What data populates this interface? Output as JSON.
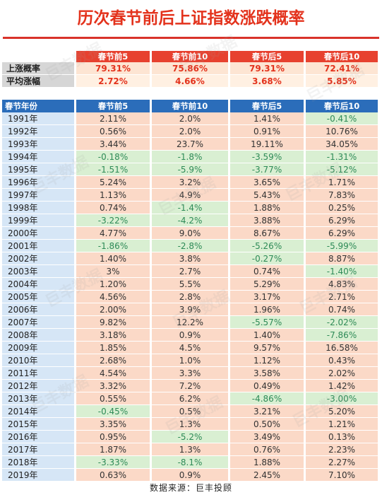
{
  "title": "历次春节前后上证指数涨跌概率",
  "source": "数据来源：巨丰投顾",
  "watermark": "巨丰数据",
  "colors": {
    "title_red": "#e3321c",
    "header_blue": "#2b6dba",
    "header_red": "#e7412f",
    "positive_bg": "#fbd9c7",
    "negative_bg": "#d9efd2",
    "negative_text": "#2e8b57"
  },
  "summary": {
    "headers": [
      "春节前5",
      "春节前10",
      "春节后5",
      "春节后10"
    ],
    "rows": [
      {
        "label": "上涨概率",
        "values": [
          "79.31%",
          "75.86%",
          "79.31%",
          "72.41%"
        ]
      },
      {
        "label": "平均涨幅",
        "values": [
          "2.72%",
          "4.66%",
          "3.68%",
          "5.85%"
        ]
      }
    ]
  },
  "main": {
    "headers": [
      "春节年份",
      "春节前5",
      "春节前10",
      "春节后5",
      "春节后10"
    ],
    "rows": [
      {
        "year": "1991年",
        "values": [
          "2.11%",
          "2.0%",
          "1.41%",
          "-0.41%"
        ]
      },
      {
        "year": "1992年",
        "values": [
          "0.56%",
          "2.0%",
          "0.91%",
          "10.76%"
        ]
      },
      {
        "year": "1993年",
        "values": [
          "3.44%",
          "23.7%",
          "19.11%",
          "34.05%"
        ]
      },
      {
        "year": "1994年",
        "values": [
          "-0.18%",
          "-1.8%",
          "-3.59%",
          "-1.31%"
        ]
      },
      {
        "year": "1995年",
        "values": [
          "-1.51%",
          "-5.9%",
          "-3.77%",
          "-5.12%"
        ]
      },
      {
        "year": "1996年",
        "values": [
          "5.24%",
          "3.2%",
          "3.65%",
          "1.71%"
        ]
      },
      {
        "year": "1997年",
        "values": [
          "1.13%",
          "4.9%",
          "5.43%",
          "7.83%"
        ]
      },
      {
        "year": "1998年",
        "values": [
          "0.74%",
          "-1.4%",
          "1.88%",
          "0.25%"
        ]
      },
      {
        "year": "1999年",
        "values": [
          "-3.22%",
          "-4.2%",
          "3.88%",
          "6.29%"
        ]
      },
      {
        "year": "2000年",
        "values": [
          "4.77%",
          "9.0%",
          "8.67%",
          "6.29%"
        ]
      },
      {
        "year": "2001年",
        "values": [
          "-1.86%",
          "-2.8%",
          "-5.26%",
          "-5.99%"
        ]
      },
      {
        "year": "2002年",
        "values": [
          "1.40%",
          "3.8%",
          "-0.27%",
          "8.87%"
        ]
      },
      {
        "year": "2003年",
        "values": [
          "3%",
          "2.7%",
          "0.74%",
          "-1.40%"
        ]
      },
      {
        "year": "2004年",
        "values": [
          "1.20%",
          "5.5%",
          "5.29%",
          "4.83%"
        ]
      },
      {
        "year": "2005年",
        "values": [
          "4.56%",
          "2.8%",
          "3.17%",
          "2.71%"
        ]
      },
      {
        "year": "2006年",
        "values": [
          "2.00%",
          "3.9%",
          "1.96%",
          "0.74%"
        ]
      },
      {
        "year": "2007年",
        "values": [
          "9.82%",
          "12.2%",
          "-5.57%",
          "-2.02%"
        ]
      },
      {
        "year": "2008年",
        "values": [
          "3.18%",
          "0.9%",
          "1.40%",
          "-7.86%"
        ]
      },
      {
        "year": "2009年",
        "values": [
          "1.85%",
          "4.5%",
          "9.57%",
          "16.58%"
        ]
      },
      {
        "year": "2010年",
        "values": [
          "2.68%",
          "1.0%",
          "1.12%",
          "0.43%"
        ]
      },
      {
        "year": "2011年",
        "values": [
          "4.54%",
          "3.3%",
          "3.58%",
          "2.02%"
        ]
      },
      {
        "year": "2012年",
        "values": [
          "3.32%",
          "7.2%",
          "0.49%",
          "1.42%"
        ]
      },
      {
        "year": "2013年",
        "values": [
          "0.55%",
          "6.2%",
          "-4.86%",
          "-3.00%"
        ]
      },
      {
        "year": "2014年",
        "values": [
          "-0.45%",
          "0.5%",
          "3.21%",
          "5.20%"
        ]
      },
      {
        "year": "2015年",
        "values": [
          "3.35%",
          "1.3%",
          "0.50%",
          "1.21%"
        ]
      },
      {
        "year": "2016年",
        "values": [
          "0.95%",
          "-5.2%",
          "3.49%",
          "0.13%"
        ]
      },
      {
        "year": "2017年",
        "values": [
          "1.87%",
          "1.3%",
          "0.76%",
          "2.23%"
        ]
      },
      {
        "year": "2018年",
        "values": [
          "-3.33%",
          "-8.1%",
          "1.88%",
          "2.27%"
        ]
      },
      {
        "year": "2019年",
        "values": [
          "0.63%",
          "0.9%",
          "2.45%",
          "7.10%"
        ]
      }
    ]
  }
}
